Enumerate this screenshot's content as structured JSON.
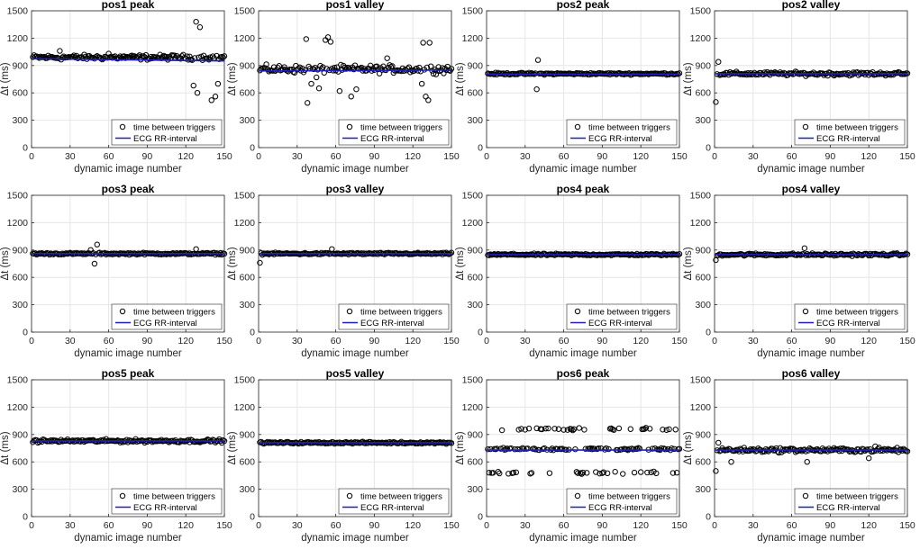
{
  "figure": {
    "xlabel": "dynamic image number",
    "ylabel": "Δt (ms)",
    "legend": [
      "time between triggers",
      "ECG RR-interval"
    ],
    "colors": {
      "markers": "#000000",
      "ecg_line": "#1f1fbf",
      "grid": "#e6e6e6",
      "axes": "#262626"
    }
  },
  "chart_data": [
    {
      "type": "scatter",
      "title": "pos1 peak",
      "x": [
        0,
        150
      ],
      "xlim": [
        0,
        150
      ],
      "ylim": [
        0,
        1500
      ],
      "xticks": [
        0,
        30,
        60,
        90,
        120,
        150
      ],
      "yticks": [
        0,
        300,
        600,
        900,
        1200,
        1500
      ],
      "series": [
        {
          "name": "time between triggers",
          "pattern": "noisy",
          "base": 990,
          "spread": 40,
          "outliers": [
            [
              128,
              1380
            ],
            [
              131,
              1320
            ],
            [
              126,
              680
            ],
            [
              129,
              600
            ],
            [
              140,
              520
            ],
            [
              143,
              560
            ],
            [
              145,
              700
            ],
            [
              60,
              1030
            ],
            [
              22,
              1060
            ]
          ]
        },
        {
          "name": "ECG RR-interval",
          "values": [
            975,
            950
          ]
        }
      ],
      "legend_location": "lower-right"
    },
    {
      "type": "scatter",
      "title": "pos1 valley",
      "x": [
        0,
        150
      ],
      "xlim": [
        0,
        150
      ],
      "ylim": [
        0,
        1500
      ],
      "xticks": [
        0,
        30,
        60,
        90,
        120,
        150
      ],
      "yticks": [
        0,
        300,
        600,
        900,
        1200,
        1500
      ],
      "series": [
        {
          "name": "time between triggers",
          "pattern": "noisy",
          "base": 860,
          "spread": 60,
          "outliers": [
            [
              37,
              1190
            ],
            [
              52,
              1180
            ],
            [
              54,
              1210
            ],
            [
              56,
              1160
            ],
            [
              38,
              490
            ],
            [
              41,
              700
            ],
            [
              47,
              650
            ],
            [
              63,
              620
            ],
            [
              72,
              560
            ],
            [
              76,
              640
            ],
            [
              128,
              1150
            ],
            [
              133,
              1150
            ],
            [
              127,
              700
            ],
            [
              130,
              560
            ],
            [
              132,
              520
            ],
            [
              45,
              770
            ],
            [
              100,
              980
            ]
          ]
        },
        {
          "name": "ECG RR-interval",
          "values": [
            840,
            850
          ]
        }
      ],
      "legend_location": "lower-right"
    },
    {
      "type": "scatter",
      "title": "pos2 peak",
      "x": [
        0,
        150
      ],
      "xlim": [
        0,
        150
      ],
      "ylim": [
        0,
        1500
      ],
      "xticks": [
        0,
        30,
        60,
        90,
        120,
        150
      ],
      "yticks": [
        0,
        300,
        600,
        900,
        1200,
        1500
      ],
      "series": [
        {
          "name": "time between triggers",
          "pattern": "noisy",
          "base": 810,
          "spread": 15,
          "outliers": [
            [
              40,
              960
            ],
            [
              39,
              640
            ]
          ]
        },
        {
          "name": "ECG RR-interval",
          "values": [
            805,
            805
          ]
        }
      ],
      "legend_location": "lower-right"
    },
    {
      "type": "scatter",
      "title": "pos2 valley",
      "x": [
        0,
        150
      ],
      "xlim": [
        0,
        150
      ],
      "ylim": [
        0,
        1500
      ],
      "xticks": [
        0,
        30,
        60,
        90,
        120,
        150
      ],
      "yticks": [
        0,
        300,
        600,
        900,
        1200,
        1500
      ],
      "series": [
        {
          "name": "time between triggers",
          "pattern": "noisy",
          "base": 810,
          "spread": 30,
          "outliers": [
            [
              3,
              940
            ],
            [
              1,
              500
            ]
          ]
        },
        {
          "name": "ECG RR-interval",
          "values": [
            810,
            810
          ]
        }
      ],
      "legend_location": "lower-right"
    },
    {
      "type": "scatter",
      "title": "pos3 peak",
      "x": [
        0,
        150
      ],
      "xlim": [
        0,
        150
      ],
      "ylim": [
        0,
        1500
      ],
      "xticks": [
        0,
        30,
        60,
        90,
        120,
        150
      ],
      "yticks": [
        0,
        300,
        600,
        900,
        1200,
        1500
      ],
      "series": [
        {
          "name": "time between triggers",
          "pattern": "noisy",
          "base": 860,
          "spread": 15,
          "outliers": [
            [
              51,
              960
            ],
            [
              49,
              750
            ],
            [
              46,
              900
            ],
            [
              128,
              910
            ]
          ]
        },
        {
          "name": "ECG RR-interval",
          "values": [
            860,
            860
          ]
        }
      ],
      "legend_location": "lower-right"
    },
    {
      "type": "scatter",
      "title": "pos3 valley",
      "x": [
        0,
        150
      ],
      "xlim": [
        0,
        150
      ],
      "ylim": [
        0,
        1500
      ],
      "xticks": [
        0,
        30,
        60,
        90,
        120,
        150
      ],
      "yticks": [
        0,
        300,
        600,
        900,
        1200,
        1500
      ],
      "series": [
        {
          "name": "time between triggers",
          "pattern": "noisy",
          "base": 860,
          "spread": 15,
          "outliers": [
            [
              1,
              760
            ],
            [
              57,
              910
            ]
          ]
        },
        {
          "name": "ECG RR-interval",
          "values": [
            860,
            860
          ]
        }
      ],
      "legend_location": "lower-right"
    },
    {
      "type": "scatter",
      "title": "pos4 peak",
      "x": [
        0,
        150
      ],
      "xlim": [
        0,
        150
      ],
      "ylim": [
        0,
        1500
      ],
      "xticks": [
        0,
        30,
        60,
        90,
        120,
        150
      ],
      "yticks": [
        0,
        300,
        600,
        900,
        1200,
        1500
      ],
      "series": [
        {
          "name": "time between triggers",
          "pattern": "noisy",
          "base": 850,
          "spread": 15,
          "outliers": []
        },
        {
          "name": "ECG RR-interval",
          "values": [
            850,
            850
          ]
        }
      ],
      "legend_location": "lower-right"
    },
    {
      "type": "scatter",
      "title": "pos4 valley",
      "x": [
        0,
        150
      ],
      "xlim": [
        0,
        150
      ],
      "ylim": [
        0,
        1500
      ],
      "xticks": [
        0,
        30,
        60,
        90,
        120,
        150
      ],
      "yticks": [
        0,
        300,
        600,
        900,
        1200,
        1500
      ],
      "series": [
        {
          "name": "time between triggers",
          "pattern": "noisy",
          "base": 850,
          "spread": 20,
          "outliers": [
            [
              1,
              790
            ],
            [
              70,
              920
            ]
          ]
        },
        {
          "name": "ECG RR-interval",
          "values": [
            850,
            850
          ]
        }
      ],
      "legend_location": "lower-right"
    },
    {
      "type": "scatter",
      "title": "pos5 peak",
      "x": [
        0,
        150
      ],
      "xlim": [
        0,
        150
      ],
      "ylim": [
        0,
        1500
      ],
      "xticks": [
        0,
        30,
        60,
        90,
        120,
        150
      ],
      "yticks": [
        0,
        300,
        600,
        900,
        1200,
        1500
      ],
      "series": [
        {
          "name": "time between triggers",
          "pattern": "noisy",
          "base": 830,
          "spread": 25,
          "outliers": []
        },
        {
          "name": "ECG RR-interval",
          "values": [
            830,
            830
          ]
        }
      ],
      "legend_location": "lower-right"
    },
    {
      "type": "scatter",
      "title": "pos5 valley",
      "x": [
        0,
        150
      ],
      "xlim": [
        0,
        150
      ],
      "ylim": [
        0,
        1500
      ],
      "xticks": [
        0,
        30,
        60,
        90,
        120,
        150
      ],
      "yticks": [
        0,
        300,
        600,
        900,
        1200,
        1500
      ],
      "series": [
        {
          "name": "time between triggers",
          "pattern": "noisy",
          "base": 810,
          "spread": 15,
          "outliers": []
        },
        {
          "name": "ECG RR-interval",
          "values": [
            810,
            810
          ]
        }
      ],
      "legend_location": "lower-right"
    },
    {
      "type": "scatter",
      "title": "pos6 peak",
      "x": [
        0,
        150
      ],
      "xlim": [
        0,
        150
      ],
      "ylim": [
        0,
        1500
      ],
      "xticks": [
        0,
        30,
        60,
        90,
        120,
        150
      ],
      "yticks": [
        0,
        300,
        600,
        900,
        1200,
        1500
      ],
      "series": [
        {
          "name": "time between triggers",
          "pattern": "trimodal",
          "levels": [
            480,
            740,
            960
          ],
          "spread": 20
        },
        {
          "name": "ECG RR-interval",
          "values": [
            730,
            730
          ]
        }
      ],
      "legend_location": "lower-right"
    },
    {
      "type": "scatter",
      "title": "pos6 valley",
      "x": [
        0,
        150
      ],
      "xlim": [
        0,
        150
      ],
      "ylim": [
        0,
        1500
      ],
      "xticks": [
        0,
        30,
        60,
        90,
        120,
        150
      ],
      "yticks": [
        0,
        300,
        600,
        900,
        1200,
        1500
      ],
      "series": [
        {
          "name": "time between triggers",
          "pattern": "noisy",
          "base": 730,
          "spread": 35,
          "outliers": [
            [
              1,
              500
            ],
            [
              3,
              810
            ],
            [
              13,
              600
            ],
            [
              72,
              600
            ],
            [
              120,
              640
            ],
            [
              125,
              770
            ]
          ]
        },
        {
          "name": "ECG RR-interval",
          "values": [
            730,
            730
          ]
        }
      ],
      "legend_location": "lower-right"
    }
  ]
}
